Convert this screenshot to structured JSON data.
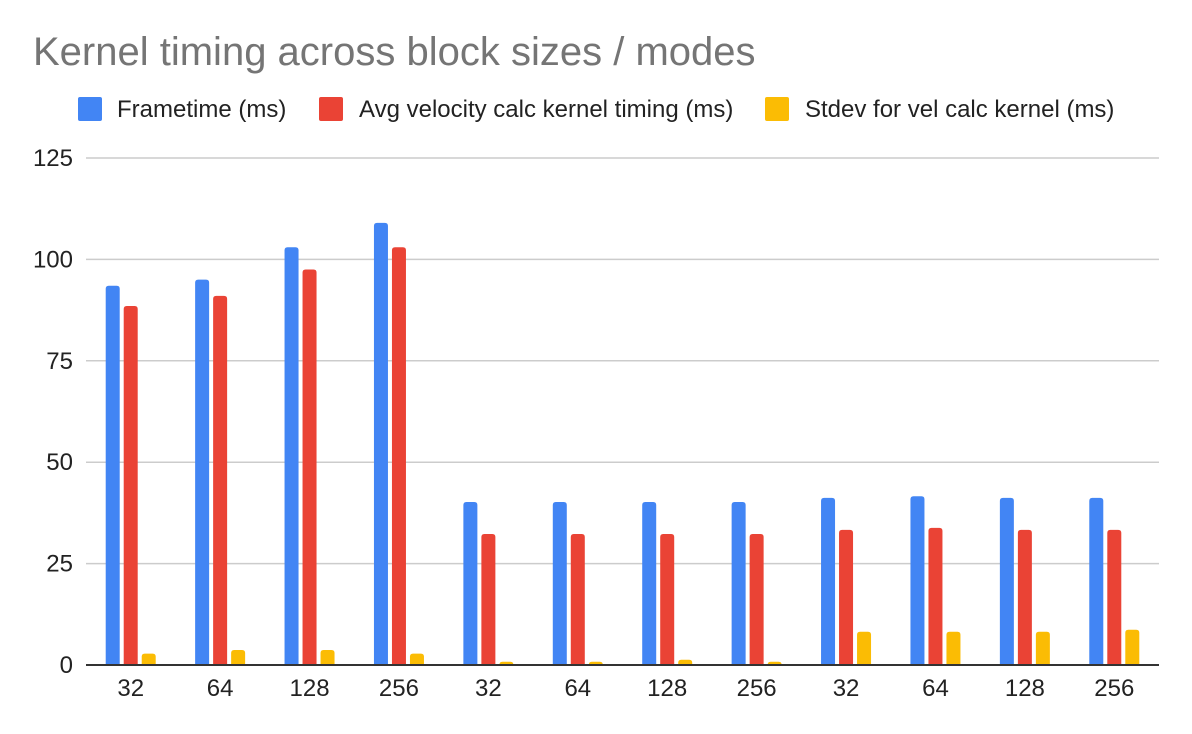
{
  "chart_data": {
    "type": "bar",
    "title": "Kernel timing across block sizes / modes",
    "xlabel": "",
    "ylabel": "",
    "categories": [
      "32",
      "64",
      "128",
      "256",
      "32",
      "64",
      "128",
      "256",
      "32",
      "64",
      "128",
      "256"
    ],
    "series": [
      {
        "name": "Frametime (ms)",
        "color": "#4285f4",
        "values": [
          93.5,
          95,
          103,
          109,
          40.2,
          40.2,
          40.2,
          40.2,
          41.2,
          41.6,
          41.2,
          41.2
        ]
      },
      {
        "name": "Avg velocity calc kernel timing (ms)",
        "color": "#ea4335",
        "values": [
          88.5,
          91,
          97.5,
          103,
          32.3,
          32.3,
          32.3,
          32.3,
          33.3,
          33.8,
          33.3,
          33.3
        ]
      },
      {
        "name": "Stdev for vel calc kernel (ms)",
        "color": "#fbbc04",
        "values": [
          2.8,
          3.7,
          3.7,
          2.8,
          0.8,
          0.8,
          1.3,
          0.8,
          8.2,
          8.2,
          8.2,
          8.7
        ]
      }
    ],
    "ylim": [
      0,
      125
    ],
    "yticks": [
      0,
      25,
      50,
      75,
      100,
      125
    ],
    "grid": true,
    "legend": "top"
  }
}
